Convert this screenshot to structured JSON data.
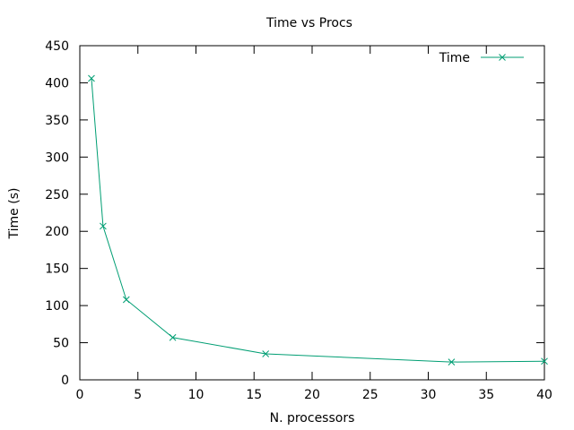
{
  "chart_data": {
    "type": "line",
    "title": "Time vs Procs",
    "xlabel": "N. processors",
    "ylabel": "Time (s)",
    "xlim": [
      0,
      40
    ],
    "ylim": [
      0,
      450
    ],
    "xticks": [
      0,
      5,
      10,
      15,
      20,
      25,
      30,
      35,
      40
    ],
    "yticks": [
      0,
      50,
      100,
      150,
      200,
      250,
      300,
      350,
      400,
      450
    ],
    "grid": false,
    "legend_position": "top-right",
    "series": [
      {
        "name": "Time",
        "color": "#009e73",
        "marker": "x",
        "x": [
          1,
          2,
          4,
          8,
          16,
          32,
          40
        ],
        "y": [
          406,
          207,
          108,
          57,
          35,
          24,
          25
        ]
      }
    ]
  }
}
